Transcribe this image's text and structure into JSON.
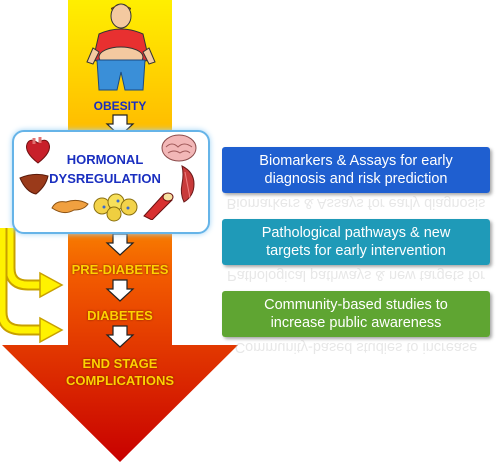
{
  "stages": {
    "obesity": "OBESITY",
    "hormonal_line1": "HORMONAL",
    "hormonal_line2": "DYSREGULATION",
    "prediabetes": "PRE-DIABETES",
    "diabetes": "DIABETES",
    "end_line1": "END STAGE",
    "end_line2": "COMPLICATIONS"
  },
  "boxes": [
    {
      "text": "Biomarkers & Assays for early\ndiagnosis and risk prediction",
      "color": "#1f5fd0"
    },
    {
      "text": "Pathological pathways & new\ntargets for early intervention",
      "color": "#1f9ab8"
    },
    {
      "text": "Community-based studies to\nincrease public awareness",
      "color": "#5fa532"
    }
  ],
  "icons": [
    "obese-man-icon",
    "heart-icon",
    "brain-icon",
    "liver-icon",
    "muscle-icon",
    "pancreas-icon",
    "fat-cells-icon",
    "blood-vessel-icon"
  ],
  "colors": {
    "arrow_top": "#ffe600",
    "arrow_bottom": "#c00000",
    "label_yellow": "#ffd200",
    "label_blue": "#1a2fc0"
  }
}
